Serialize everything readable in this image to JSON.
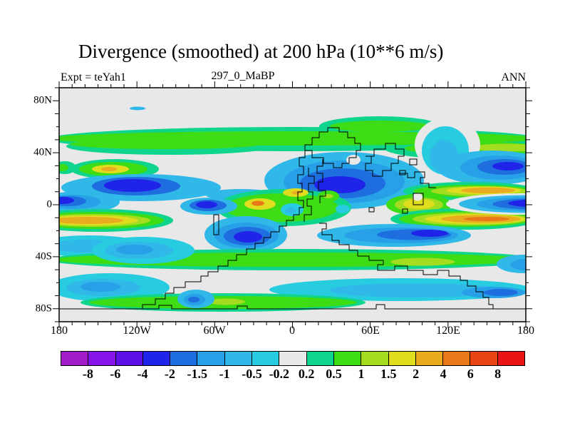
{
  "title": "Divergence (smoothed) at 200 hPa (10**6 m/s)",
  "header": {
    "experiment": "Expt = teYah1",
    "run_id": "297_0_MaBP",
    "season": "ANN"
  },
  "map": {
    "x_tick_labels": [
      "180",
      "120W",
      "60W",
      "0",
      "60E",
      "120E",
      "180"
    ],
    "y_tick_labels": [
      "80N",
      "40N",
      "0",
      "40S",
      "80S"
    ]
  },
  "colorbar": {
    "boundary_labels": [
      "-8",
      "-6",
      "-4",
      "-2",
      "-1.5",
      "-1",
      "-0.5",
      "-0.2",
      "0.2",
      "0.5",
      "1",
      "1.5",
      "2",
      "4",
      "6",
      "8"
    ],
    "colors": [
      "#A21CC8",
      "#8714E8",
      "#5F10E8",
      "#2024E8",
      "#1E6EE0",
      "#28A0E8",
      "#30B8E8",
      "#28CCE0",
      "#E8E8E8",
      "#0FD48C",
      "#3EDC14",
      "#A4DC20",
      "#E0DC1E",
      "#E8AC1E",
      "#E87818",
      "#E84414",
      "#E81414"
    ]
  },
  "chart_data": {
    "type": "filled_contour_map",
    "title": "Divergence (smoothed) at 200 hPa (10**6 m/s)",
    "annotations": {
      "top_left": "Expt = teYah1",
      "top_center": "297_0_MaBP",
      "top_right": "ANN"
    },
    "projection": "equirectangular lat-lon, global",
    "lon_range": [
      -180,
      180
    ],
    "lat_range": [
      -90,
      90
    ],
    "x_tick_labels": [
      "180",
      "120W",
      "60W",
      "0",
      "60E",
      "120E",
      "180"
    ],
    "y_tick_labels": [
      "80N",
      "40N",
      "0",
      "40S",
      "80S"
    ],
    "units_as_shown": "10**6 m/s",
    "contour_levels": [
      -8,
      -6,
      -4,
      -2,
      -1.5,
      -1,
      -0.5,
      -0.2,
      0.2,
      0.5,
      1,
      1.5,
      2,
      4,
      6,
      8
    ],
    "palette": [
      "#A21CC8",
      "#8714E8",
      "#5F10E8",
      "#2024E8",
      "#1E6EE0",
      "#28A0E8",
      "#30B8E8",
      "#28CCE0",
      "#E8E8E8",
      "#0FD48C",
      "#3EDC14",
      "#A4DC20",
      "#E0DC1E",
      "#E8AC1E",
      "#E87818",
      "#E84414",
      "#E81414"
    ],
    "overlay": "stair-step paleo-continental coastlines (Pangaea-like, 297.0 Ma BP) plus straight coast along ~80S",
    "qualitative_features": [
      "near-zero (gray) caps poleward of ~60N and ~70S",
      "positive (green, 0.2-1) zonal bands near 40-60N and 35-50S, yellow-green core 120E-180 at ~40-48N",
      "negative cyan/blue centers: 0-60E at 10-40N with dark core, 120E-180 at 20-35N, central Pacific 150W-100W at 10-20N",
      "equatorial positive band 60E-180 with orange cores (2-4) near 10N and 5-15S; orange band 180-140W at ~10-15S",
      "dark-blue convergent wedge (-4 to -2) on the equator at the dateline (both map edges)",
      "dark-blue centers 45W-10W at 20-35S and 60E-130E at 15-25S; cyan band along 55-65S",
      "green band with local maxima over tropical Africa/S. America sector near the equator, cyan holes ~0-10E"
    ]
  }
}
